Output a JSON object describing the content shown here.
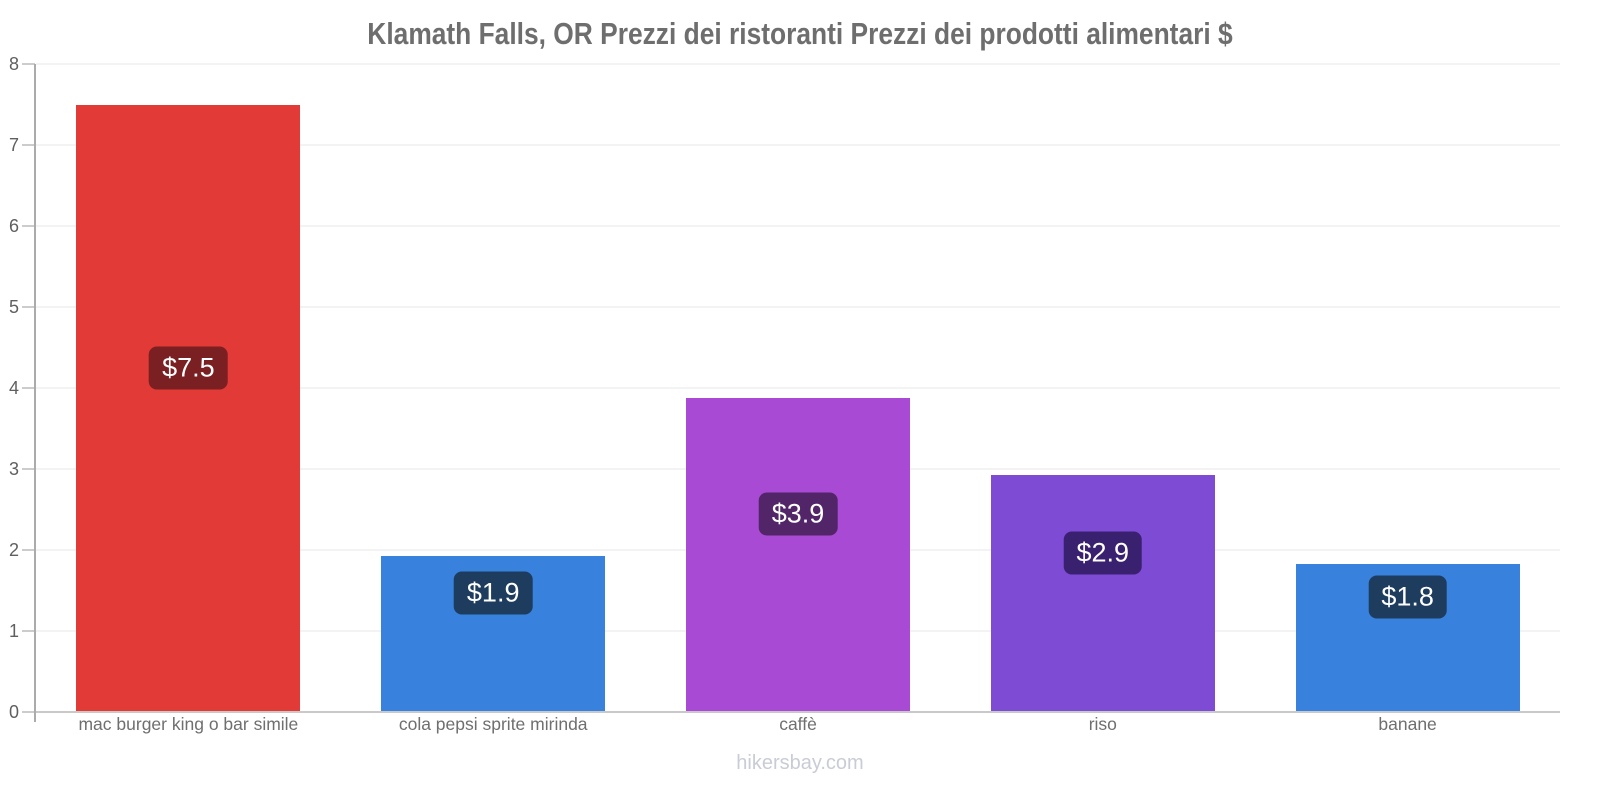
{
  "chart_data": {
    "type": "bar",
    "title": "Klamath Falls, OR Prezzi dei ristoranti Prezzi dei prodotti alimentari $",
    "categories": [
      "mac burger king o bar simile",
      "cola pepsi sprite mirinda",
      "caffè",
      "riso",
      "banane"
    ],
    "values": [
      7.5,
      1.93,
      3.88,
      2.93,
      1.83
    ],
    "value_labels": [
      "$7.5",
      "$1.9",
      "$3.9",
      "$2.9",
      "$1.8"
    ],
    "bar_colors": [
      "#e23a36",
      "#3882dd",
      "#a94ad4",
      "#7d4bd4",
      "#3882dd"
    ],
    "badge_colors": [
      "#7a2023",
      "#1e3d5e",
      "#512568",
      "#3a2170",
      "#1e3d5e"
    ],
    "currency": "$",
    "xlabel": "",
    "ylabel": "",
    "ylim": [
      0,
      8
    ],
    "yticks": [
      0,
      1,
      2,
      3,
      4,
      5,
      6,
      7,
      8
    ],
    "grid": true,
    "legend": false
  },
  "footer": {
    "text": "hikersbay.com"
  }
}
